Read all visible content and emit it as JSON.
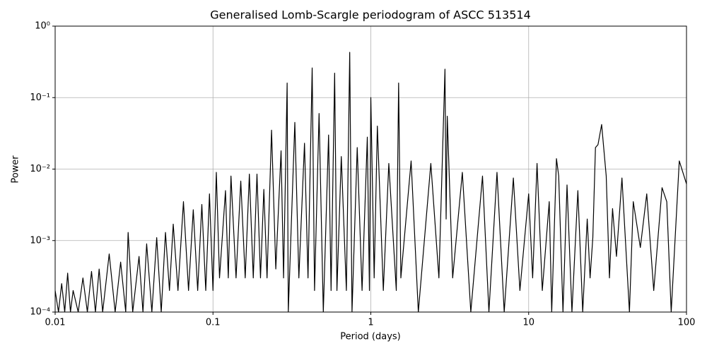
{
  "chart_data": {
    "type": "line",
    "title": "Generalised Lomb-Scargle periodogram of ASCC 513514",
    "xlabel": "Period (days)",
    "ylabel": "Power",
    "xscale": "log",
    "yscale": "log",
    "grid": true,
    "xlim": [
      0.01,
      100
    ],
    "ylim": [
      0.0001,
      1
    ],
    "xticks": [
      0.01,
      0.1,
      1,
      10,
      100
    ],
    "yticks": [
      {
        "value": 0.0001,
        "label": "10⁻⁴"
      },
      {
        "value": 0.001,
        "label": "10⁻³"
      },
      {
        "value": 0.01,
        "label": "10⁻²"
      },
      {
        "value": 0.1,
        "label": "10⁻¹"
      },
      {
        "value": 1,
        "label": "10⁰"
      }
    ],
    "series": [
      {
        "color": "#000000",
        "x": [
          0.01,
          0.0105,
          0.011,
          0.0115,
          0.012,
          0.0125,
          0.013,
          0.014,
          0.015,
          0.016,
          0.017,
          0.018,
          0.019,
          0.02,
          0.022,
          0.024,
          0.026,
          0.028,
          0.029,
          0.031,
          0.034,
          0.036,
          0.038,
          0.041,
          0.044,
          0.047,
          0.05,
          0.053,
          0.056,
          0.06,
          0.065,
          0.07,
          0.075,
          0.08,
          0.085,
          0.09,
          0.095,
          0.1,
          0.105,
          0.11,
          0.12,
          0.125,
          0.13,
          0.14,
          0.15,
          0.16,
          0.17,
          0.18,
          0.19,
          0.2,
          0.21,
          0.22,
          0.235,
          0.25,
          0.27,
          0.28,
          0.295,
          0.3,
          0.33,
          0.35,
          0.38,
          0.4,
          0.425,
          0.44,
          0.47,
          0.5,
          0.54,
          0.56,
          0.59,
          0.61,
          0.65,
          0.7,
          0.735,
          0.76,
          0.82,
          0.88,
          0.95,
          0.98,
          1.0,
          1.05,
          1.1,
          1.2,
          1.3,
          1.45,
          1.5,
          1.55,
          1.8,
          2.0,
          2.4,
          2.7,
          2.95,
          3.0,
          3.05,
          3.3,
          3.8,
          4.3,
          5.1,
          5.6,
          6.3,
          7.0,
          8.0,
          8.8,
          10.0,
          10.6,
          11.3,
          12.2,
          13.5,
          14.0,
          15.0,
          15.5,
          16.5,
          17.5,
          18.8,
          20.5,
          22.0,
          23.5,
          24.5,
          25.5,
          26.5,
          27.5,
          29.0,
          31.0,
          32.5,
          34.0,
          36.0,
          39.0,
          43.5,
          46.0,
          51.0,
          56.0,
          62.0,
          70.0,
          75.0,
          80.0,
          90.0,
          100
        ],
        "values": [
          0.0002,
          0.0001,
          0.00025,
          0.0001,
          0.00035,
          0.0001,
          0.0002,
          0.0001,
          0.0003,
          0.0001,
          0.00037,
          0.0001,
          0.0004,
          0.0001,
          0.00065,
          0.0001,
          0.0005,
          0.0001,
          0.0013,
          0.0001,
          0.0006,
          0.0001,
          0.0009,
          0.0001,
          0.0011,
          0.0001,
          0.0013,
          0.0002,
          0.0017,
          0.0002,
          0.0035,
          0.0002,
          0.0027,
          0.0002,
          0.0032,
          0.0002,
          0.0045,
          0.0002,
          0.009,
          0.0003,
          0.005,
          0.0003,
          0.008,
          0.0003,
          0.0068,
          0.0003,
          0.0085,
          0.0003,
          0.0085,
          0.0003,
          0.0052,
          0.0003,
          0.035,
          0.0004,
          0.018,
          0.0003,
          0.16,
          0.0001,
          0.045,
          0.0003,
          0.023,
          0.0003,
          0.26,
          0.0002,
          0.06,
          0.0001,
          0.03,
          0.0002,
          0.22,
          0.0002,
          0.015,
          0.0002,
          0.43,
          0.0001,
          0.02,
          0.0002,
          0.028,
          0.0002,
          0.1,
          0.0003,
          0.04,
          0.0002,
          0.012,
          0.0002,
          0.16,
          0.0003,
          0.013,
          0.0001,
          0.012,
          0.0003,
          0.25,
          0.002,
          0.055,
          0.0003,
          0.009,
          0.0001,
          0.008,
          0.0001,
          0.009,
          0.0001,
          0.0075,
          0.0002,
          0.0045,
          0.0003,
          0.012,
          0.0002,
          0.0035,
          0.0001,
          0.014,
          0.008,
          0.0001,
          0.006,
          0.0001,
          0.005,
          0.0001,
          0.002,
          0.0003,
          0.0011,
          0.02,
          0.022,
          0.042,
          0.008,
          0.0003,
          0.0028,
          0.0006,
          0.0075,
          0.0001,
          0.0035,
          0.0008,
          0.0045,
          0.0002,
          0.0055,
          0.0035,
          0.0001,
          0.013,
          0.0062
        ]
      }
    ]
  }
}
